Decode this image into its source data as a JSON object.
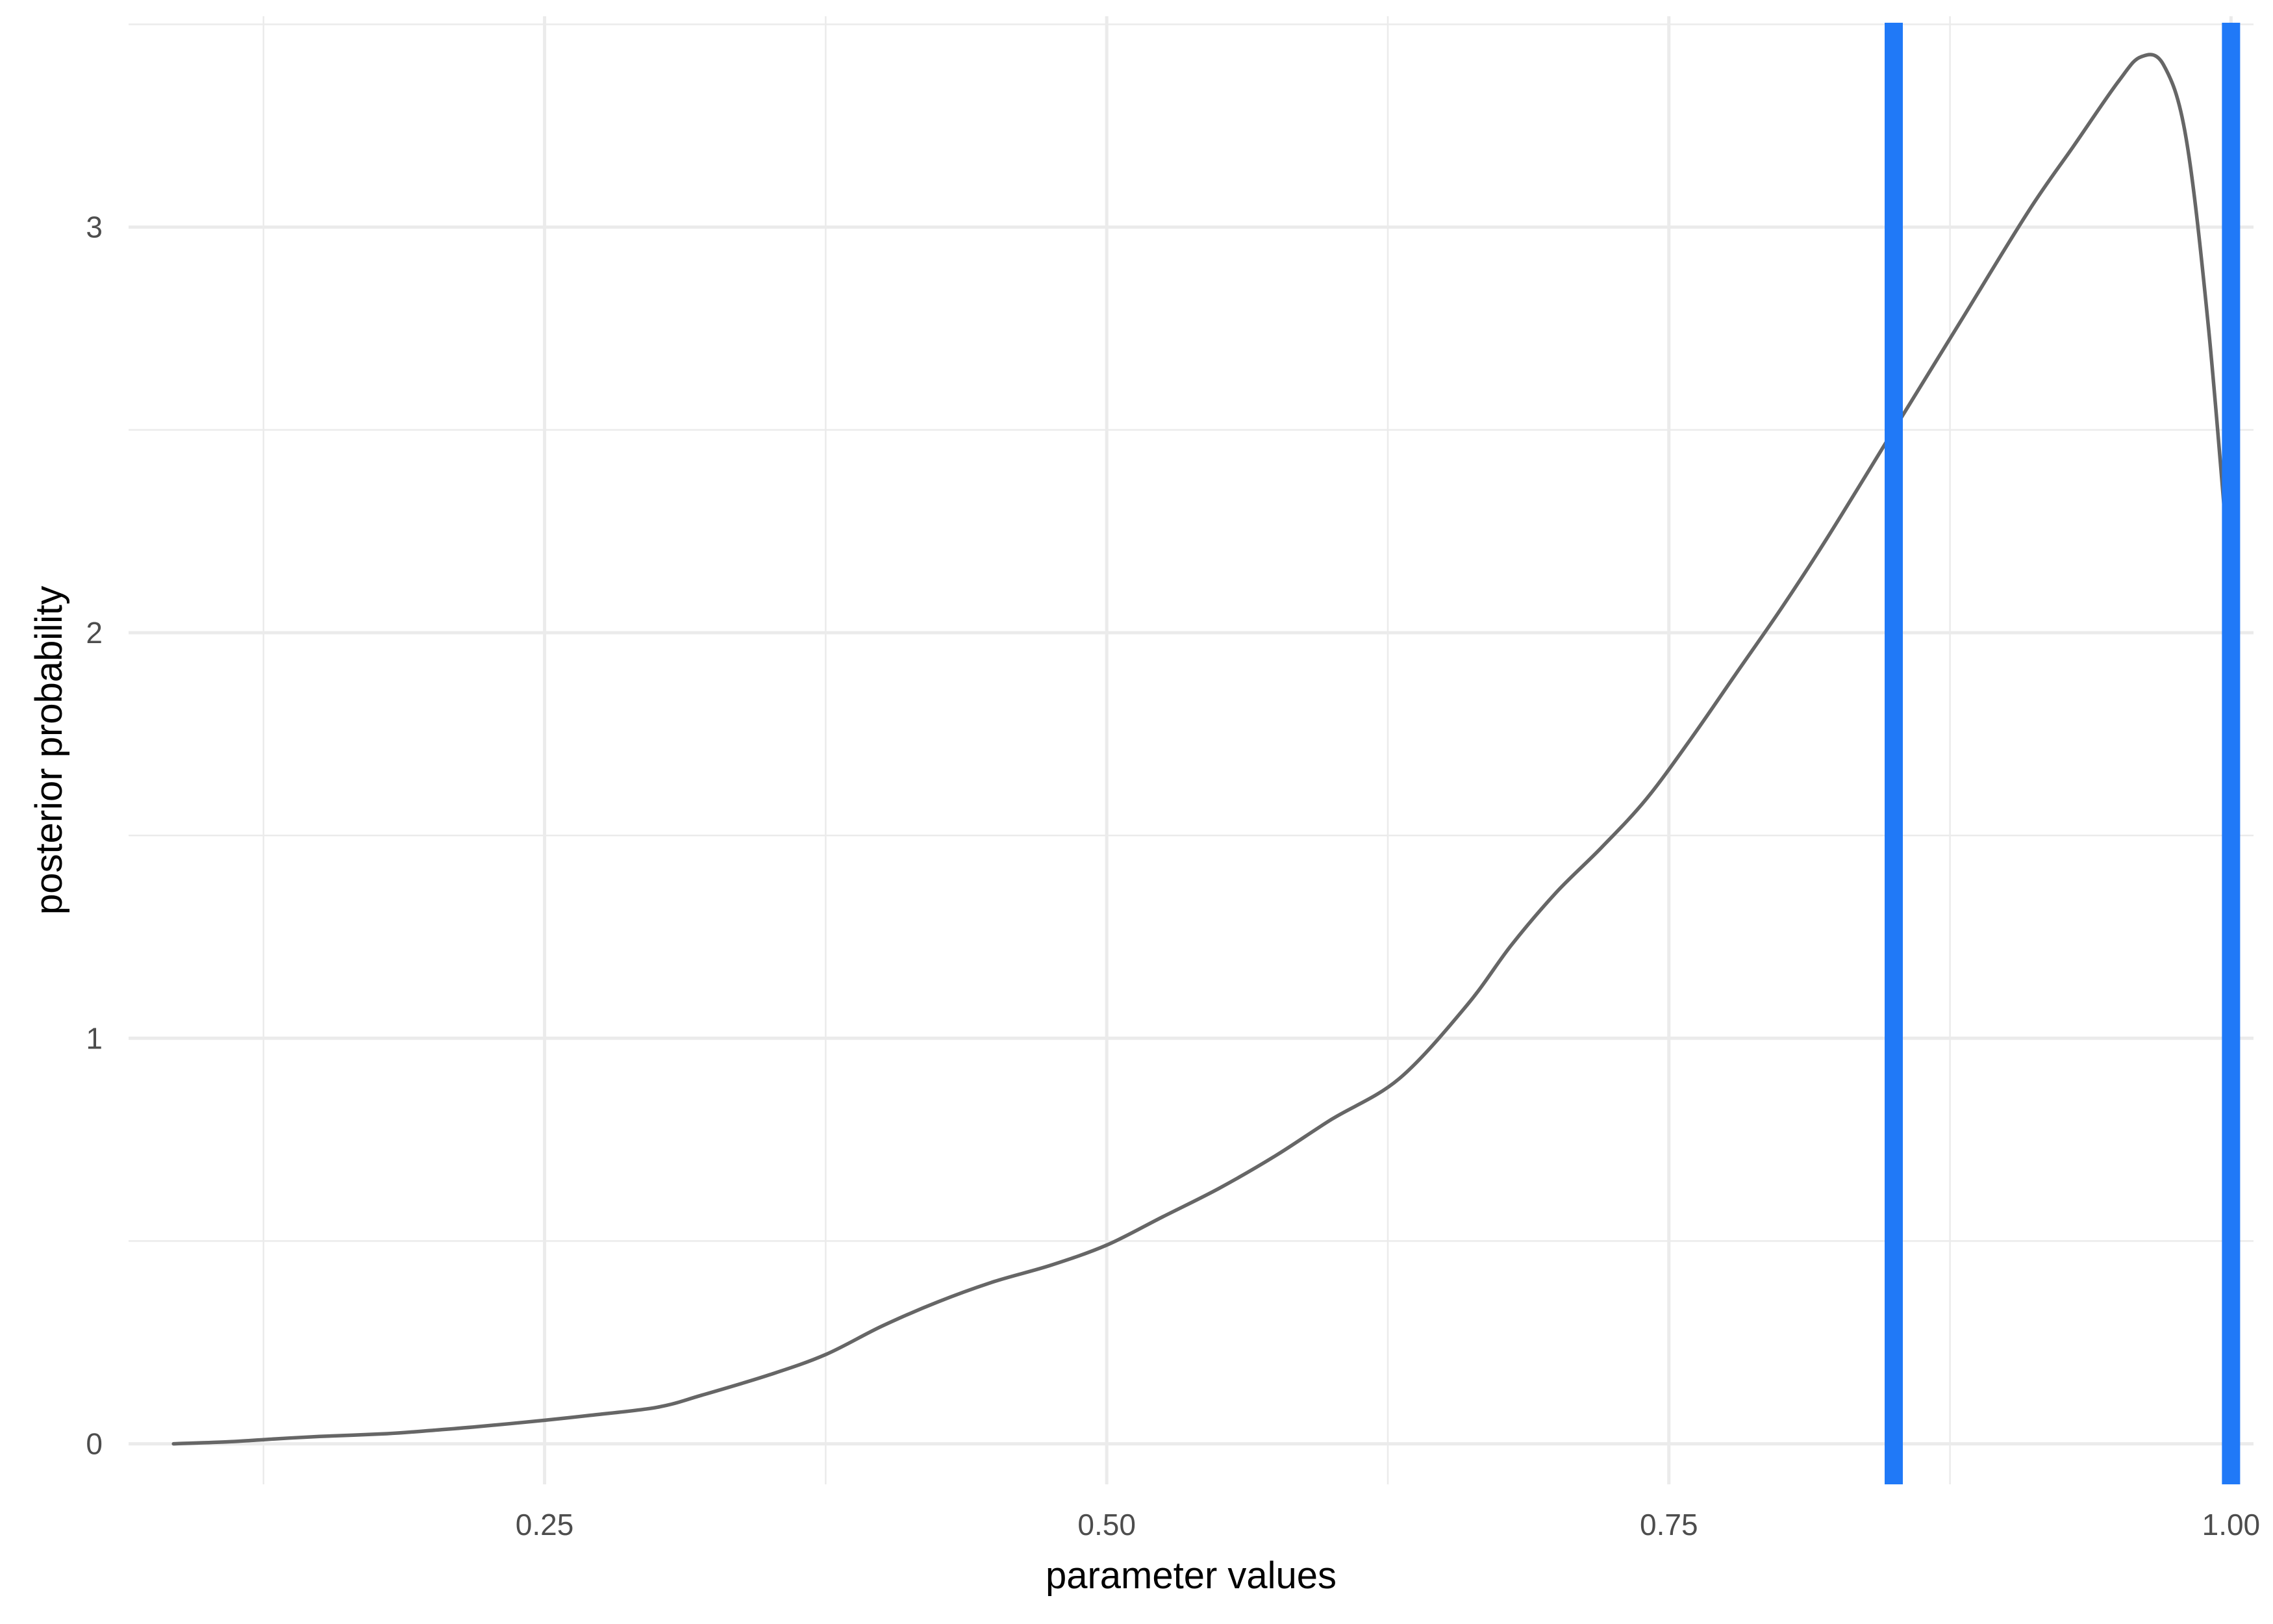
{
  "chart_data": {
    "type": "line",
    "title": "",
    "xlabel": "parameter values",
    "ylabel": "posterior probability",
    "xlim": [
      0.065,
      1.01
    ],
    "ylim": [
      -0.1,
      3.52
    ],
    "x_ticks": [
      0.25,
      0.5,
      0.75,
      1.0
    ],
    "x_tick_labels": [
      "0.25",
      "0.50",
      "0.75",
      "1.00"
    ],
    "y_ticks": [
      0,
      1,
      2,
      3
    ],
    "y_tick_labels": [
      "0",
      "1",
      "2",
      "3"
    ],
    "grid": true,
    "series": [
      {
        "color": "#666666",
        "x": [
          0.085,
          0.11,
          0.13,
          0.15,
          0.18,
          0.2,
          0.22,
          0.25,
          0.27,
          0.3,
          0.32,
          0.35,
          0.375,
          0.4,
          0.425,
          0.45,
          0.475,
          0.5,
          0.525,
          0.55,
          0.575,
          0.6,
          0.63,
          0.66,
          0.68,
          0.7,
          0.72,
          0.74,
          0.76,
          0.78,
          0.8,
          0.82,
          0.85,
          0.88,
          0.91,
          0.93,
          0.95,
          0.96,
          0.97,
          0.98,
          0.99,
          1.0
        ],
        "y": [
          0.0,
          0.005,
          0.012,
          0.018,
          0.025,
          0.033,
          0.042,
          0.058,
          0.07,
          0.09,
          0.12,
          0.17,
          0.22,
          0.29,
          0.35,
          0.4,
          0.44,
          0.49,
          0.56,
          0.63,
          0.71,
          0.8,
          0.9,
          1.08,
          1.23,
          1.36,
          1.47,
          1.59,
          1.74,
          1.9,
          2.06,
          2.23,
          2.5,
          2.77,
          3.04,
          3.2,
          3.36,
          3.42,
          3.4,
          3.22,
          2.75,
          2.1
        ]
      }
    ],
    "vlines": {
      "color": "#2079f7",
      "x": [
        0.85,
        1.0
      ]
    }
  }
}
